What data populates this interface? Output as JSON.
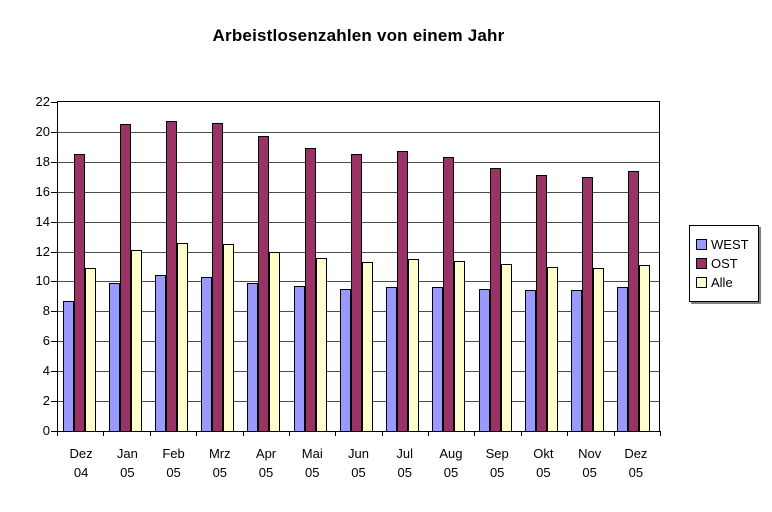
{
  "page": {
    "background": "#ffffff"
  },
  "chart_data": {
    "type": "bar",
    "title": "Arbeistlosenzahlen von einem Jahr",
    "categories": [
      "Dez 04",
      "Jan 05",
      "Feb 05",
      "Mrz 05",
      "Apr 05",
      "Mai 05",
      "Jun 05",
      "Jul 05",
      "Aug 05",
      "Sep 05",
      "Okt 05",
      "Nov 05",
      "Dez 05"
    ],
    "series": [
      {
        "name": "WEST",
        "color": "#9999ff",
        "values": [
          8.7,
          9.9,
          10.4,
          10.3,
          9.9,
          9.7,
          9.5,
          9.6,
          9.6,
          9.5,
          9.4,
          9.4,
          9.6
        ]
      },
      {
        "name": "OST",
        "color": "#993366",
        "values": [
          18.5,
          20.5,
          20.7,
          20.6,
          19.7,
          18.9,
          18.5,
          18.7,
          18.3,
          17.6,
          17.1,
          17.0,
          17.4
        ]
      },
      {
        "name": "Alle",
        "color": "#ffffcc",
        "values": [
          10.9,
          12.1,
          12.6,
          12.5,
          12.0,
          11.6,
          11.3,
          11.5,
          11.4,
          11.2,
          11.0,
          10.9,
          11.1
        ]
      }
    ],
    "xlabel": "",
    "ylabel": "",
    "ylim": [
      0,
      22
    ],
    "ytick_step": 2,
    "grid": true,
    "legend_position": "right",
    "plot_border_color": "#000000",
    "gridline_color": "#4d4d4d",
    "bar_border_color": "#000000"
  }
}
